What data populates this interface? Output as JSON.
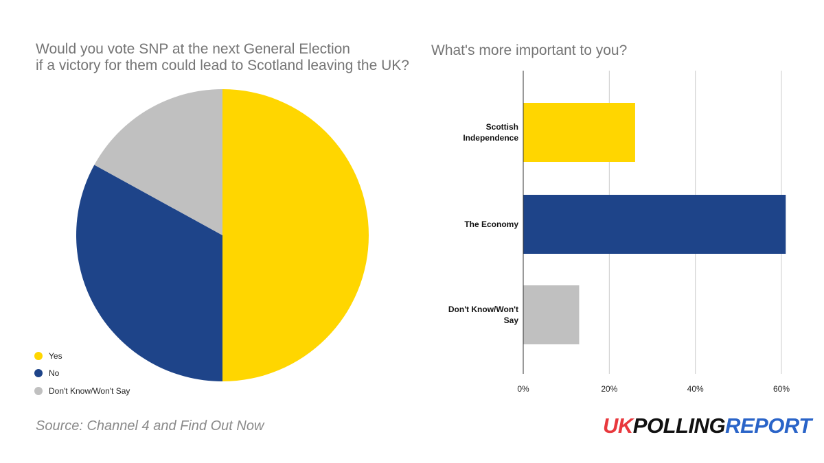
{
  "chart_data": [
    {
      "type": "pie",
      "title_lines": [
        "Would you vote SNP at the next General Election",
        "if a victory for them could lead to Scotland leaving the UK?"
      ],
      "categories": [
        "Yes",
        "No",
        "Don't Know/Won't Say"
      ],
      "values": [
        50,
        33,
        17
      ],
      "colors": [
        "#ffd600",
        "#1e4489",
        "#c0c0c0"
      ],
      "legend": "bottom-left"
    },
    {
      "type": "bar",
      "orientation": "horizontal",
      "title": "What's more important to you?",
      "categories": [
        {
          "lines": [
            "Scottish",
            "Independence"
          ]
        },
        {
          "lines": [
            "The Economy"
          ]
        },
        {
          "lines": [
            "Don't Know/Won't",
            "Say"
          ]
        }
      ],
      "values": [
        26,
        61,
        13
      ],
      "colors": [
        "#ffd600",
        "#1e4489",
        "#c0c0c0"
      ],
      "xlim": [
        0,
        64
      ],
      "xticks": [
        {
          "value": 0,
          "label": "0%"
        },
        {
          "value": 20,
          "label": "20%"
        },
        {
          "value": 40,
          "label": "40%"
        },
        {
          "value": 60,
          "label": "60%"
        }
      ],
      "grid": true
    }
  ],
  "footer": {
    "source": "Source: Channel 4 and Find Out Now",
    "logo": {
      "part1": "UK",
      "part2": "POLLING",
      "part3": "REPORT"
    }
  }
}
